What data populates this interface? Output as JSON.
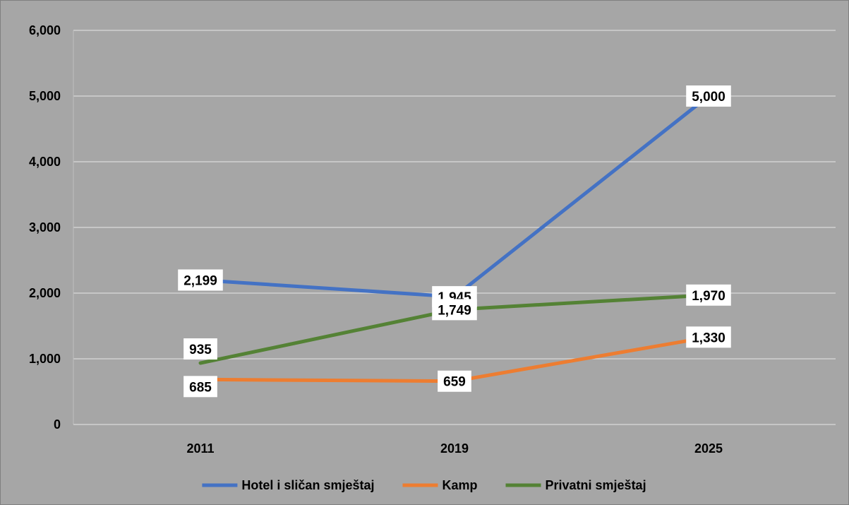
{
  "chart_data": {
    "type": "line",
    "categories": [
      "2011",
      "2019",
      "2025"
    ],
    "series": [
      {
        "name": "Hotel i sličan smještaj",
        "values": [
          2199,
          1945,
          5000
        ],
        "labels": [
          "2,199",
          "1,945",
          "5,000"
        ],
        "color": "#4472c4"
      },
      {
        "name": "Kamp",
        "values": [
          685,
          659,
          1330
        ],
        "labels": [
          "685",
          "659",
          "1,330"
        ],
        "color": "#ed7d31"
      },
      {
        "name": "Privatni smještaj",
        "values": [
          935,
          1749,
          1970
        ],
        "labels": [
          "935",
          "1,749",
          "1,970"
        ],
        "color": "#548235"
      }
    ],
    "ylim": [
      0,
      6000
    ],
    "yticks": [
      0,
      1000,
      2000,
      3000,
      4000,
      5000,
      6000
    ],
    "ytick_labels": [
      "0",
      "1,000",
      "2,000",
      "3,000",
      "4,000",
      "5,000",
      "6,000"
    ],
    "grid": true,
    "legend_position": "bottom",
    "background_color": "#a6a6a6",
    "gridline_color": "#d9d9d9"
  }
}
